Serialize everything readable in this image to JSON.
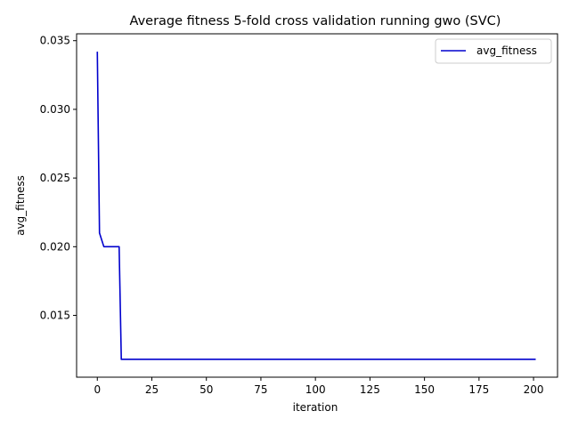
{
  "chart_data": {
    "type": "line",
    "title": "Average fitness 5-fold cross validation running gwo (SVC)",
    "xlabel": "iteration",
    "ylabel": "avg_fitness",
    "xlim": [
      -9.5,
      211
    ],
    "ylim": [
      0.0105,
      0.0355
    ],
    "xticks": [
      0,
      25,
      50,
      75,
      100,
      125,
      150,
      175,
      200
    ],
    "yticks": [
      0.015,
      0.02,
      0.025,
      0.03,
      0.035
    ],
    "ytick_labels": [
      "0.015",
      "0.020",
      "0.025",
      "0.030",
      "0.035"
    ],
    "grid": false,
    "legend": {
      "placement": "top-right"
    },
    "series": [
      {
        "name": "avg_fitness",
        "color": "#0000cd",
        "x": [
          0,
          1,
          2,
          3,
          4,
          5,
          6,
          7,
          8,
          9,
          10,
          11,
          201
        ],
        "y": [
          0.0342,
          0.021,
          0.0205,
          0.02,
          0.02,
          0.02,
          0.02,
          0.02,
          0.02,
          0.02,
          0.02,
          0.0118,
          0.0118
        ]
      }
    ]
  }
}
